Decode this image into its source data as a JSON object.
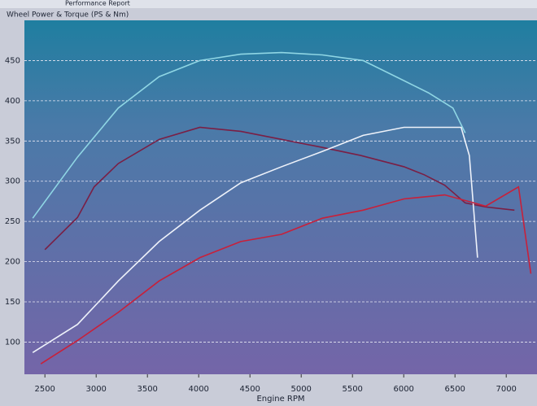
{
  "tab_label": "Performance Report",
  "chart_data": {
    "type": "line",
    "title": "Wheel Power & Torque (PS & Nm)",
    "x_label": "Engine RPM",
    "xlim": [
      2300,
      7300
    ],
    "ylim": [
      60,
      500
    ],
    "xticks": [
      2500,
      3000,
      3500,
      4000,
      4500,
      5000,
      5500,
      6000,
      6500,
      7000
    ],
    "yticks": [
      100,
      150,
      200,
      250,
      300,
      350,
      400,
      450
    ],
    "grid": true,
    "series": [
      {
        "color": "#8fd6e4",
        "x": [
          2381,
          2818,
          3216,
          3614,
          4012,
          4410,
          4808,
          5206,
          5604,
          6002,
          6240,
          6480,
          6600
        ],
        "values": [
          254,
          330,
          391,
          430,
          450,
          458,
          460,
          457,
          450,
          425,
          410,
          391,
          360
        ]
      },
      {
        "color": "#7a1f45",
        "x": [
          2500,
          2818,
          2980,
          3216,
          3615,
          4012,
          4410,
          4808,
          5206,
          5580,
          6002,
          6200,
          6400,
          6600,
          6800,
          7080
        ],
        "values": [
          215,
          255,
          293,
          322,
          352,
          367,
          362,
          352,
          342,
          332,
          318,
          308,
          295,
          273,
          268,
          264
        ]
      },
      {
        "color": "#eef2fa",
        "x": [
          2381,
          2818,
          3216,
          3614,
          4012,
          4410,
          4808,
          5206,
          5604,
          6002,
          6560,
          6640,
          6720
        ],
        "values": [
          87,
          122,
          176,
          225,
          264,
          298,
          318,
          337,
          357,
          367,
          367,
          332,
          205
        ]
      },
      {
        "color": "#c8203a",
        "x": [
          2460,
          2818,
          3216,
          3614,
          4012,
          4410,
          4808,
          5206,
          5604,
          6002,
          6400,
          6800,
          7120,
          7240
        ],
        "values": [
          73,
          102,
          137,
          176,
          205,
          225,
          234,
          254,
          264,
          278,
          283,
          269,
          293,
          185
        ]
      }
    ]
  }
}
